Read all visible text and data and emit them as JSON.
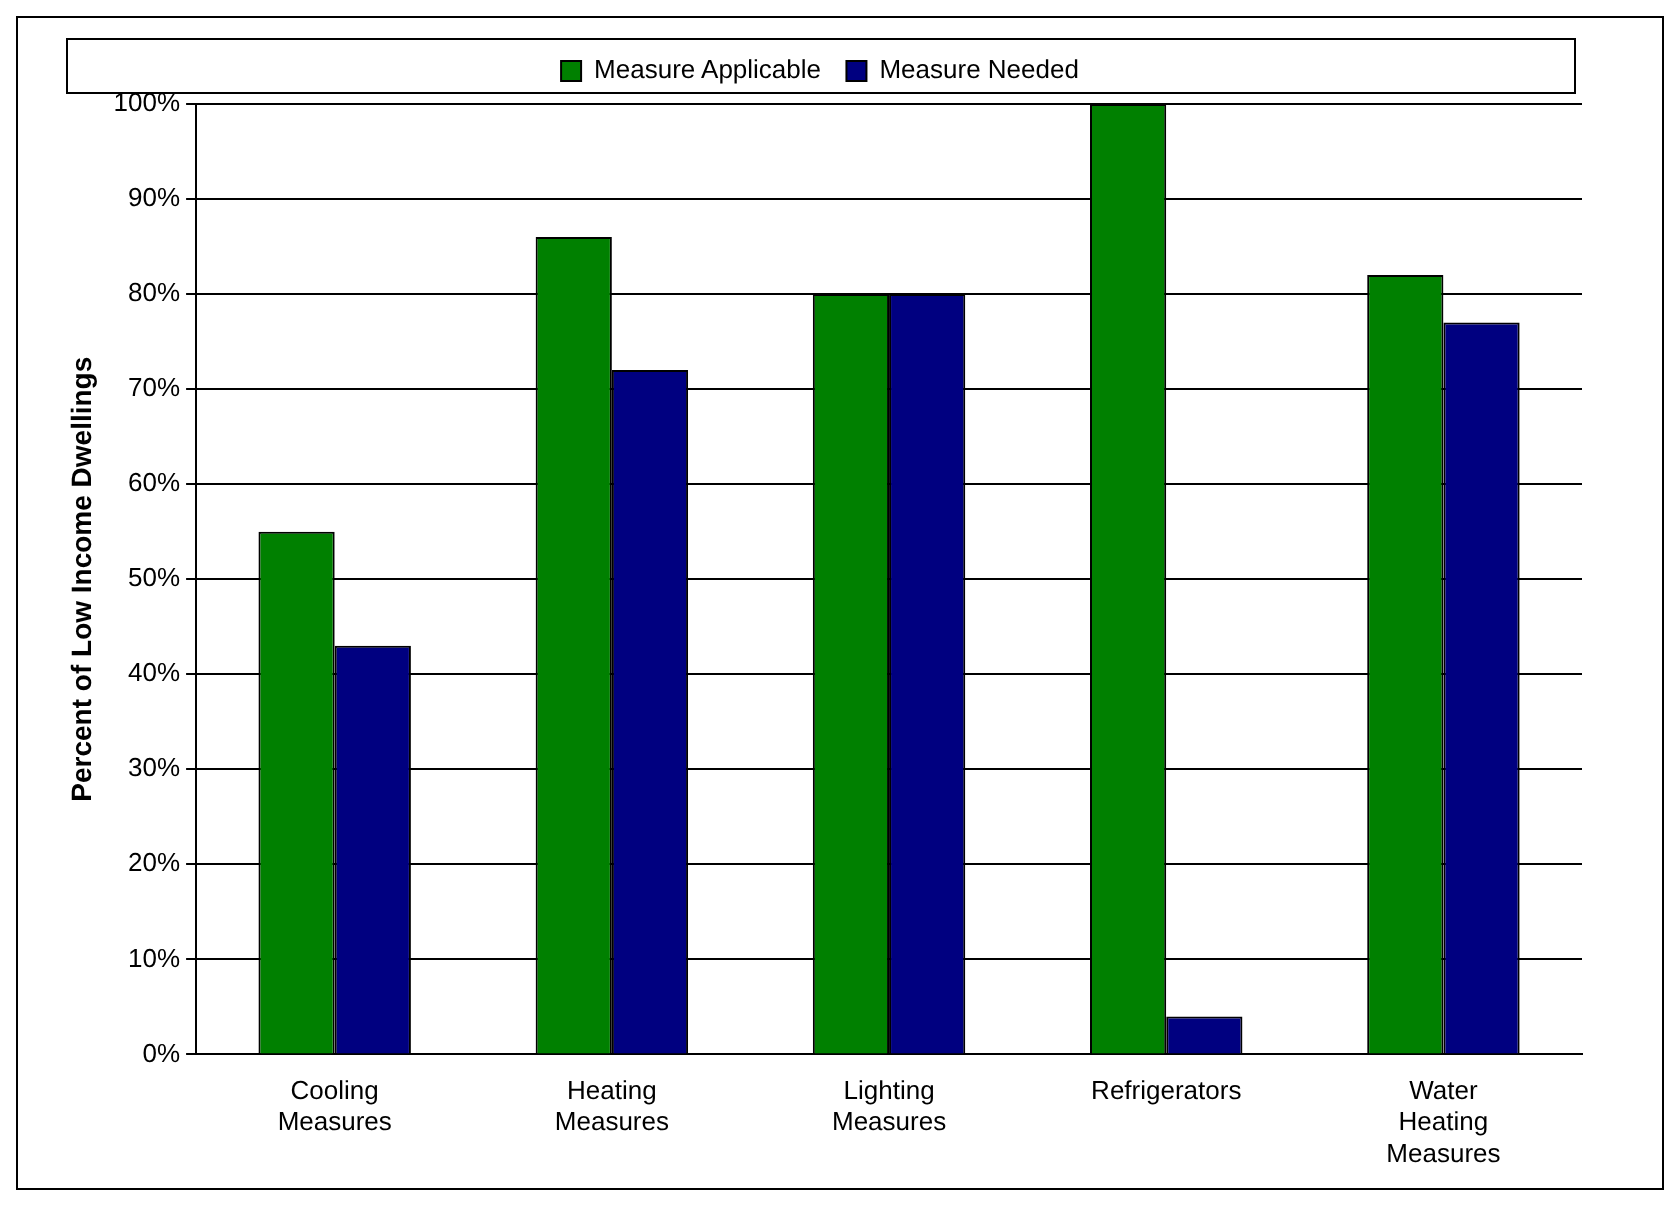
{
  "chart_data": {
    "type": "bar",
    "ylabel": "Percent of Low Income Dwellings",
    "categories": [
      "Cooling Measures",
      "Heating Measures",
      "Lighting Measures",
      "Refrigerators",
      "Water Heating Measures"
    ],
    "series": [
      {
        "name": "Measure Applicable",
        "color": "#008000",
        "values": [
          55,
          86,
          80,
          100,
          82
        ]
      },
      {
        "name": "Measure Needed",
        "color": "#000080",
        "values": [
          43,
          72,
          80,
          4,
          77
        ]
      }
    ],
    "ylim": [
      0,
      100
    ],
    "yticks": [
      {
        "value": 0,
        "label": "0%"
      },
      {
        "value": 10,
        "label": "10%"
      },
      {
        "value": 20,
        "label": "20%"
      },
      {
        "value": 30,
        "label": "30%"
      },
      {
        "value": 40,
        "label": "40%"
      },
      {
        "value": 50,
        "label": "50%"
      },
      {
        "value": 60,
        "label": "60%"
      },
      {
        "value": 70,
        "label": "70%"
      },
      {
        "value": 80,
        "label": "80%"
      },
      {
        "value": 90,
        "label": "90%"
      },
      {
        "value": 100,
        "label": "100%"
      }
    ],
    "grid": "y",
    "legend": "top"
  }
}
